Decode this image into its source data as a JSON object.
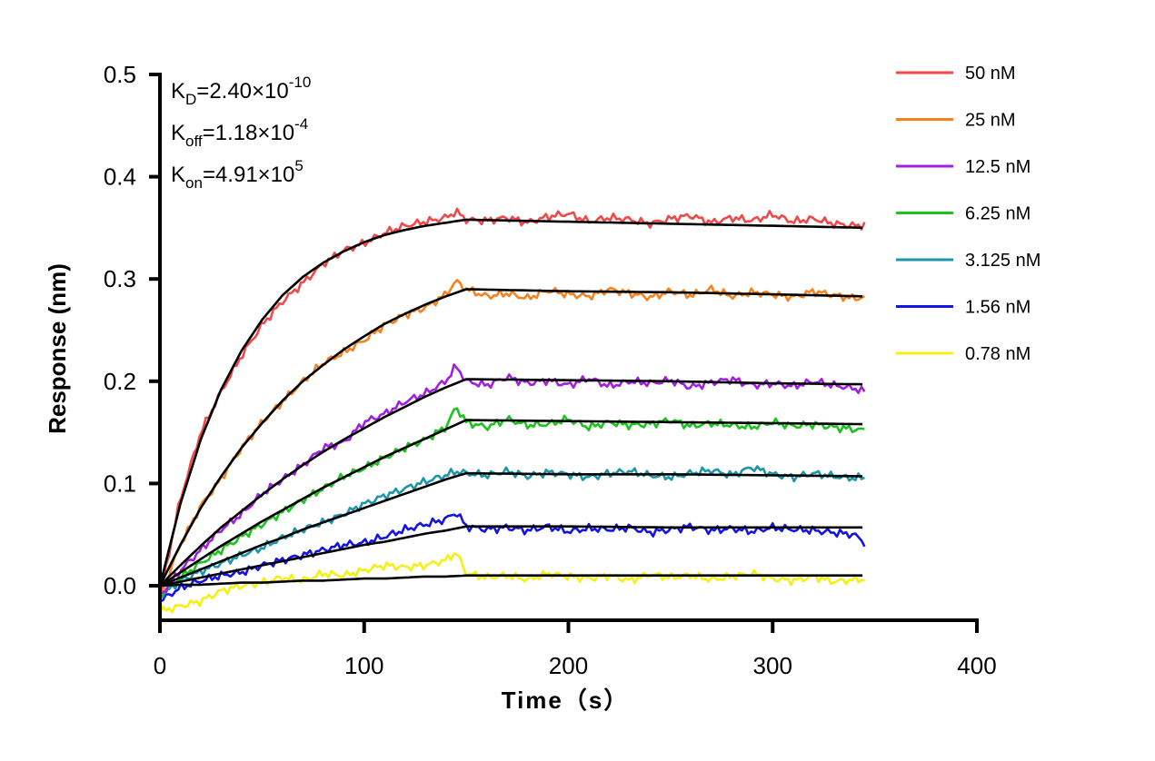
{
  "chart_data": {
    "type": "line",
    "title": "",
    "xlabel": "Time（s）",
    "ylabel": "Response (nm)",
    "xlim": [
      0,
      400
    ],
    "ylim": [
      -0.035,
      0.5
    ],
    "xticks": [
      "0",
      "100",
      "200",
      "300",
      "400"
    ],
    "yticks": [
      "0.0",
      "0.1",
      "0.2",
      "0.3",
      "0.4",
      "0.5"
    ],
    "grid": false,
    "legend_position": "top-right",
    "fit_color": "#000000",
    "annotations": [
      {
        "main": "K",
        "sub": "D",
        "text": "=2.40×10",
        "sup": "-10"
      },
      {
        "main": "K",
        "sub": "off",
        "text": "=1.18×10",
        "sup": "-4"
      },
      {
        "main": "K",
        "sub": "on",
        "text": "=4.91×10",
        "sup": "5"
      }
    ],
    "x": [
      0,
      10,
      20,
      30,
      40,
      50,
      60,
      70,
      80,
      90,
      100,
      110,
      120,
      130,
      140,
      145,
      150,
      160,
      170,
      180,
      190,
      200,
      210,
      220,
      230,
      240,
      250,
      260,
      270,
      280,
      290,
      300,
      310,
      320,
      330,
      340,
      345
    ],
    "fit_x": [
      0,
      10,
      20,
      30,
      40,
      50,
      60,
      70,
      80,
      90,
      100,
      110,
      120,
      130,
      140,
      150,
      200,
      250,
      300,
      345
    ],
    "series": [
      {
        "name": "50 nM",
        "color": "#f04848",
        "values": [
          -0.01,
          0.085,
          0.15,
          0.19,
          0.225,
          0.255,
          0.278,
          0.296,
          0.315,
          0.328,
          0.335,
          0.345,
          0.352,
          0.356,
          0.36,
          0.366,
          0.358,
          0.357,
          0.36,
          0.355,
          0.361,
          0.364,
          0.356,
          0.36,
          0.358,
          0.354,
          0.359,
          0.362,
          0.355,
          0.36,
          0.357,
          0.363,
          0.356,
          0.359,
          0.354,
          0.352,
          0.353
        ],
        "fit": [
          0,
          0.08,
          0.143,
          0.192,
          0.23,
          0.26,
          0.284,
          0.302,
          0.316,
          0.327,
          0.336,
          0.343,
          0.348,
          0.352,
          0.355,
          0.358,
          0.356,
          0.354,
          0.352,
          0.35
        ]
      },
      {
        "name": "25 nM",
        "color": "#f5821e",
        "values": [
          -0.01,
          0.04,
          0.078,
          0.105,
          0.135,
          0.16,
          0.18,
          0.2,
          0.218,
          0.228,
          0.24,
          0.255,
          0.265,
          0.272,
          0.285,
          0.298,
          0.29,
          0.283,
          0.286,
          0.281,
          0.289,
          0.285,
          0.283,
          0.29,
          0.286,
          0.282,
          0.288,
          0.284,
          0.29,
          0.283,
          0.287,
          0.285,
          0.282,
          0.288,
          0.284,
          0.281,
          0.282
        ],
        "fit": [
          0,
          0.04,
          0.076,
          0.107,
          0.135,
          0.159,
          0.181,
          0.2,
          0.216,
          0.231,
          0.244,
          0.256,
          0.266,
          0.275,
          0.283,
          0.29,
          0.288,
          0.287,
          0.285,
          0.283
        ]
      },
      {
        "name": "12.5 nM",
        "color": "#a21ee0",
        "values": [
          -0.01,
          0.015,
          0.035,
          0.055,
          0.07,
          0.09,
          0.104,
          0.118,
          0.135,
          0.14,
          0.16,
          0.168,
          0.18,
          0.188,
          0.2,
          0.215,
          0.2,
          0.196,
          0.204,
          0.198,
          0.201,
          0.196,
          0.203,
          0.195,
          0.2,
          0.198,
          0.201,
          0.194,
          0.199,
          0.202,
          0.196,
          0.198,
          0.195,
          0.2,
          0.196,
          0.193,
          0.19
        ],
        "fit": [
          0,
          0.02,
          0.039,
          0.057,
          0.073,
          0.089,
          0.104,
          0.118,
          0.131,
          0.143,
          0.154,
          0.165,
          0.175,
          0.185,
          0.194,
          0.202,
          0.201,
          0.2,
          0.198,
          0.197
        ]
      },
      {
        "name": "6.25 nM",
        "color": "#1ec21e",
        "values": [
          -0.01,
          0.008,
          0.022,
          0.035,
          0.048,
          0.06,
          0.072,
          0.084,
          0.095,
          0.107,
          0.115,
          0.125,
          0.135,
          0.143,
          0.155,
          0.175,
          0.16,
          0.155,
          0.163,
          0.157,
          0.158,
          0.163,
          0.155,
          0.16,
          0.157,
          0.158,
          0.162,
          0.156,
          0.159,
          0.157,
          0.155,
          0.16,
          0.156,
          0.158,
          0.155,
          0.153,
          0.152
        ],
        "fit": [
          0,
          0.013,
          0.026,
          0.039,
          0.051,
          0.063,
          0.074,
          0.085,
          0.096,
          0.106,
          0.116,
          0.126,
          0.135,
          0.144,
          0.153,
          0.162,
          0.161,
          0.16,
          0.159,
          0.158
        ]
      },
      {
        "name": "3.125 nM",
        "color": "#1e96aa",
        "values": [
          -0.01,
          0.005,
          0.014,
          0.022,
          0.03,
          0.037,
          0.047,
          0.055,
          0.062,
          0.07,
          0.08,
          0.088,
          0.095,
          0.102,
          0.108,
          0.112,
          0.11,
          0.108,
          0.112,
          0.107,
          0.111,
          0.109,
          0.106,
          0.11,
          0.112,
          0.108,
          0.106,
          0.11,
          0.113,
          0.108,
          0.116,
          0.109,
          0.106,
          0.11,
          0.107,
          0.105,
          0.106
        ],
        "fit": [
          0,
          0.008,
          0.016,
          0.024,
          0.032,
          0.04,
          0.047,
          0.055,
          0.062,
          0.069,
          0.076,
          0.083,
          0.09,
          0.097,
          0.104,
          0.11,
          0.109,
          0.109,
          0.108,
          0.107
        ]
      },
      {
        "name": "1.56 nM",
        "color": "#1414e6",
        "values": [
          -0.015,
          -0.002,
          0.005,
          0.01,
          0.013,
          0.02,
          0.025,
          0.03,
          0.035,
          0.04,
          0.042,
          0.048,
          0.055,
          0.06,
          0.065,
          0.072,
          0.058,
          0.055,
          0.057,
          0.054,
          0.058,
          0.053,
          0.056,
          0.055,
          0.057,
          0.052,
          0.055,
          0.058,
          0.054,
          0.056,
          0.053,
          0.057,
          0.055,
          0.054,
          0.052,
          0.05,
          0.042
        ],
        "fit": [
          0,
          0.004,
          0.008,
          0.012,
          0.016,
          0.02,
          0.024,
          0.028,
          0.032,
          0.036,
          0.04,
          0.043,
          0.047,
          0.051,
          0.054,
          0.058,
          0.058,
          0.057,
          0.057,
          0.057
        ]
      },
      {
        "name": "0.78 nM",
        "color": "#f5f014",
        "values": [
          -0.025,
          -0.02,
          -0.015,
          -0.005,
          0,
          0.003,
          0.008,
          0.005,
          0.012,
          0.01,
          0.015,
          0.02,
          0.018,
          0.02,
          0.025,
          0.033,
          0.012,
          0.008,
          0.01,
          0.006,
          0.012,
          0.009,
          0.007,
          0.01,
          0.005,
          0.011,
          0.008,
          0.01,
          0.006,
          0.009,
          0.012,
          0.007,
          0.005,
          0.009,
          0.004,
          0.006,
          0.006
        ],
        "fit": [
          0,
          0.001,
          0.001,
          0.002,
          0.003,
          0.003,
          0.004,
          0.005,
          0.005,
          0.006,
          0.007,
          0.007,
          0.008,
          0.009,
          0.009,
          0.01,
          0.01,
          0.01,
          0.01,
          0.01
        ]
      }
    ]
  }
}
